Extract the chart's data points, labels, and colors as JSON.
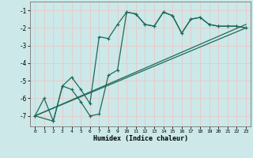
{
  "xlabel": "Humidex (Indice chaleur)",
  "bg_color": "#cce8e8",
  "grid_color": "#e8c8c8",
  "line_color": "#1a6b5a",
  "xlim": [
    -0.5,
    23.5
  ],
  "ylim": [
    -7.6,
    -0.5
  ],
  "xticks": [
    0,
    1,
    2,
    3,
    4,
    5,
    6,
    7,
    8,
    9,
    10,
    11,
    12,
    13,
    14,
    15,
    16,
    17,
    18,
    19,
    20,
    21,
    22,
    23
  ],
  "yticks": [
    -7,
    -6,
    -5,
    -4,
    -3,
    -2,
    -1
  ],
  "line1_x": [
    0,
    1,
    2,
    3,
    4,
    5,
    6,
    7,
    8,
    9,
    10,
    11,
    12,
    13,
    14,
    15,
    16,
    17,
    18,
    19,
    20,
    21,
    22,
    23
  ],
  "line1_y": [
    -7.0,
    -6.0,
    -7.3,
    -5.3,
    -5.5,
    -6.2,
    -7.0,
    -6.9,
    -4.7,
    -4.4,
    -1.1,
    -1.2,
    -1.8,
    -1.9,
    -1.1,
    -1.3,
    -2.3,
    -1.5,
    -1.4,
    -1.8,
    -1.9,
    -1.9,
    -1.9,
    -2.0
  ],
  "line2_x": [
    0,
    2,
    3,
    4,
    5,
    6,
    7,
    8,
    9,
    10,
    11,
    12,
    13,
    14,
    15,
    16,
    17,
    18,
    19,
    20,
    21,
    22,
    23
  ],
  "line2_y": [
    -7.0,
    -7.3,
    -5.3,
    -4.8,
    -5.5,
    -6.3,
    -2.5,
    -2.6,
    -1.8,
    -1.1,
    -1.2,
    -1.8,
    -1.9,
    -1.1,
    -1.3,
    -2.3,
    -1.5,
    -1.4,
    -1.8,
    -1.9,
    -1.9,
    -1.9,
    -2.0
  ],
  "trend1_x": [
    0,
    23
  ],
  "trend1_y": [
    -7.0,
    -2.0
  ],
  "trend2_x": [
    0,
    23
  ],
  "trend2_y": [
    -7.0,
    -1.8
  ]
}
